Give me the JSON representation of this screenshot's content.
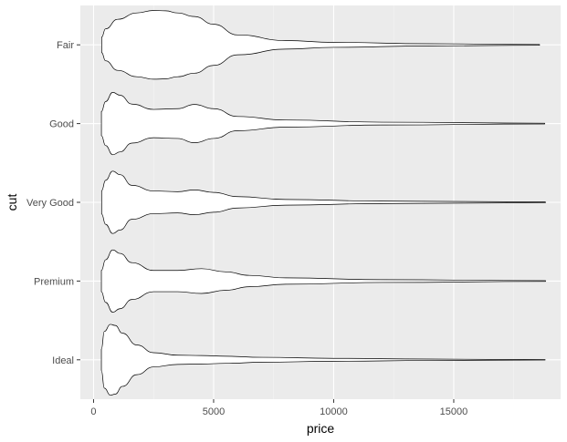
{
  "chart_data": {
    "type": "violin",
    "title": "",
    "xlabel": "price",
    "ylabel": "cut",
    "xlim": [
      -550,
      19450
    ],
    "xticks": [
      0,
      5000,
      10000,
      15000
    ],
    "xtick_labels": [
      "0",
      "5000",
      "10000",
      "15000"
    ],
    "categories": [
      "Fair",
      "Good",
      "Very Good",
      "Premium",
      "Ideal"
    ],
    "grid": true,
    "legend": "none",
    "colors": {
      "panel": "#ebebeb",
      "grid": "#ffffff",
      "violin_fill": "#ffffff",
      "violin_stroke": "#000000",
      "text": "#4d4d4d"
    },
    "series": [
      {
        "category": "Fair",
        "min": 337,
        "max": 18574,
        "profile": [
          [
            337,
            0.22
          ],
          [
            500,
            0.45
          ],
          [
            1000,
            0.72
          ],
          [
            1800,
            0.9
          ],
          [
            2500,
            0.97
          ],
          [
            3000,
            0.96
          ],
          [
            3500,
            0.9
          ],
          [
            4200,
            0.8
          ],
          [
            5000,
            0.58
          ],
          [
            6000,
            0.28
          ],
          [
            8000,
            0.12
          ],
          [
            10000,
            0.07
          ],
          [
            14000,
            0.03
          ],
          [
            18574,
            0.01
          ]
        ]
      },
      {
        "category": "Good",
        "min": 327,
        "max": 18788,
        "profile": [
          [
            327,
            0.34
          ],
          [
            500,
            0.62
          ],
          [
            800,
            0.88
          ],
          [
            1100,
            0.8
          ],
          [
            1600,
            0.55
          ],
          [
            2500,
            0.4
          ],
          [
            3500,
            0.42
          ],
          [
            4200,
            0.54
          ],
          [
            5000,
            0.42
          ],
          [
            6000,
            0.2
          ],
          [
            8000,
            0.1
          ],
          [
            12000,
            0.04
          ],
          [
            18788,
            0.01
          ]
        ]
      },
      {
        "category": "Very Good",
        "min": 336,
        "max": 18818,
        "profile": [
          [
            336,
            0.33
          ],
          [
            500,
            0.62
          ],
          [
            800,
            0.88
          ],
          [
            1100,
            0.78
          ],
          [
            1600,
            0.48
          ],
          [
            2500,
            0.32
          ],
          [
            3500,
            0.3
          ],
          [
            4200,
            0.35
          ],
          [
            5000,
            0.28
          ],
          [
            6000,
            0.16
          ],
          [
            8000,
            0.08
          ],
          [
            12000,
            0.035
          ],
          [
            18818,
            0.01
          ]
        ]
      },
      {
        "category": "Premium",
        "min": 326,
        "max": 18823,
        "profile": [
          [
            326,
            0.3
          ],
          [
            500,
            0.6
          ],
          [
            800,
            0.88
          ],
          [
            1100,
            0.78
          ],
          [
            1600,
            0.52
          ],
          [
            2500,
            0.3
          ],
          [
            3500,
            0.3
          ],
          [
            4500,
            0.35
          ],
          [
            5500,
            0.26
          ],
          [
            6500,
            0.16
          ],
          [
            8000,
            0.09
          ],
          [
            12000,
            0.04
          ],
          [
            18823,
            0.01
          ]
        ]
      },
      {
        "category": "Ideal",
        "min": 326,
        "max": 18806,
        "profile": [
          [
            326,
            0.3
          ],
          [
            450,
            0.8
          ],
          [
            700,
            1.0
          ],
          [
            900,
            0.97
          ],
          [
            1200,
            0.75
          ],
          [
            1800,
            0.42
          ],
          [
            2500,
            0.2
          ],
          [
            3500,
            0.13
          ],
          [
            4500,
            0.12
          ],
          [
            5500,
            0.1
          ],
          [
            7000,
            0.07
          ],
          [
            10000,
            0.04
          ],
          [
            14000,
            0.02
          ],
          [
            18806,
            0.005
          ]
        ]
      }
    ]
  }
}
